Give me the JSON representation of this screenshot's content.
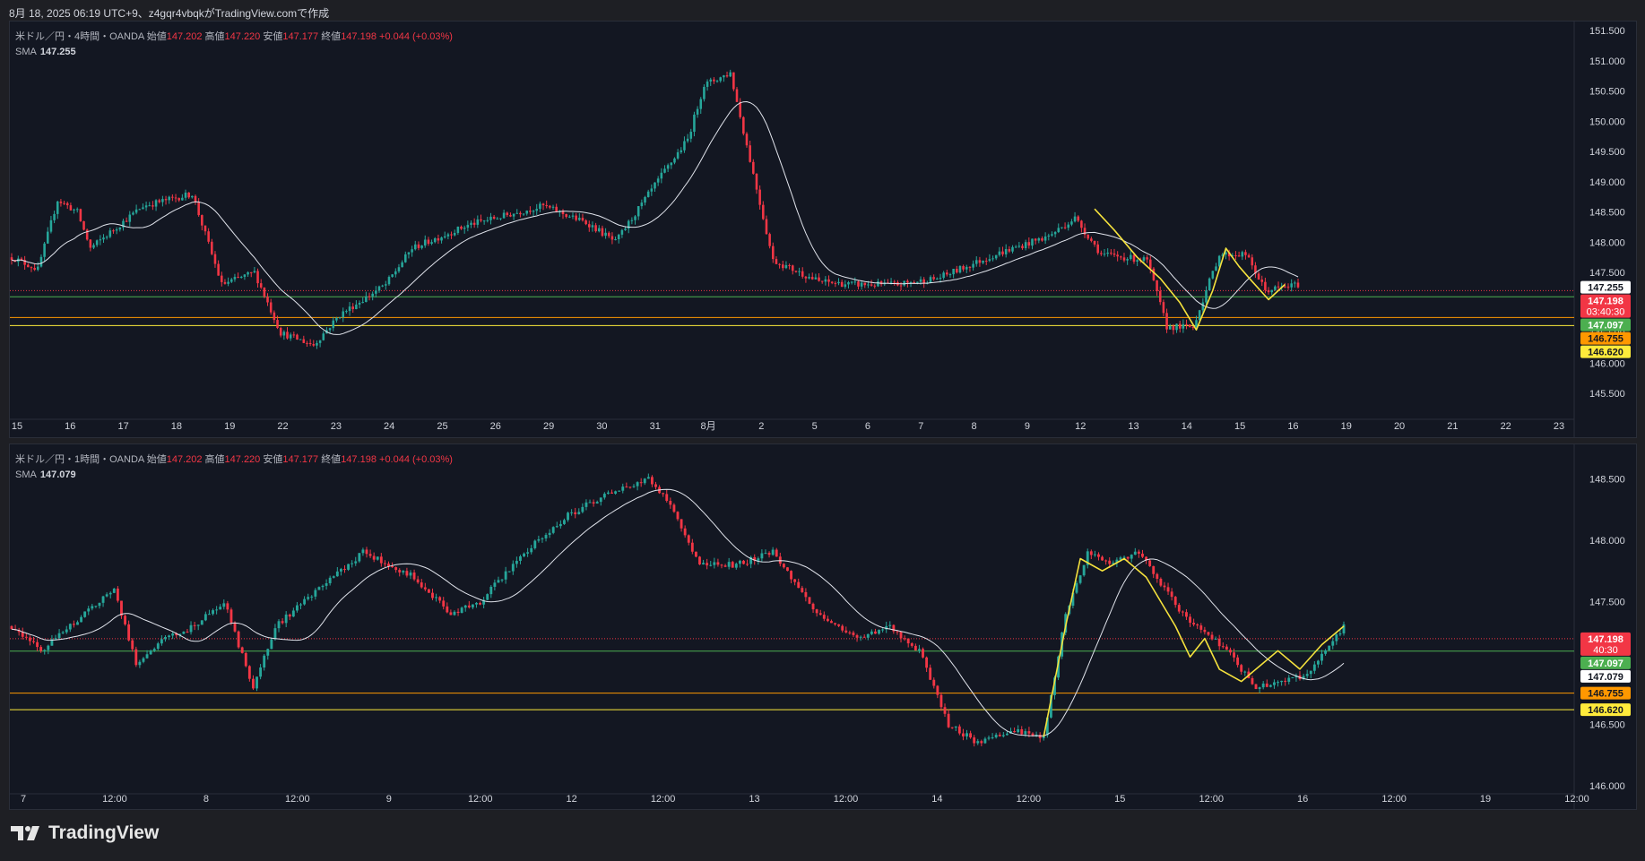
{
  "header": {
    "text": "8月 18, 2025 06:19 UTC+9、z4gqr4vbqkがTradingView.comで作成"
  },
  "colors": {
    "up": "#26a69a",
    "down": "#f23645",
    "sma": "#e0e3eb",
    "yellow_line": "#f5e23d",
    "green_line": "#4caf50",
    "orange_line": "#ff9800",
    "lightyellow_line": "#ffeb3b",
    "axis_text": "#d1d4dc"
  },
  "panes": [
    {
      "id": "pane1",
      "legend": {
        "symbol": "米ドル／円・4時間・OANDA",
        "open_label": "始値",
        "open": "147.202",
        "high_label": "高値",
        "high": "147.220",
        "low_label": "安値",
        "low": "147.177",
        "close_label": "終値",
        "close": "147.198",
        "change": "+0.044 (+0.03%)",
        "sma_label": "SMA",
        "sma_value": "147.255"
      },
      "y_axis": {
        "min": 145.1,
        "max": 151.65,
        "ticks": [
          "145.500",
          "146.000",
          "146.500",
          "147.000",
          "147.500",
          "148.000",
          "148.500",
          "149.000",
          "149.500",
          "150.000",
          "150.500",
          "151.000",
          "151.500"
        ]
      },
      "x_labels": [
        "15",
        "16",
        "17",
        "18",
        "19",
        "22",
        "23",
        "24",
        "25",
        "26",
        "29",
        "30",
        "31",
        "8月",
        "2",
        "5",
        "6",
        "7",
        "8",
        "9",
        "12",
        "13",
        "14",
        "15",
        "16",
        "19",
        "20",
        "21",
        "22",
        "23"
      ],
      "price_tags": [
        {
          "value": 147.255,
          "text": "147.255",
          "bg": "#ffffff",
          "fg": "#131722"
        },
        {
          "value": 147.198,
          "text": "147.198",
          "sub": "03:40:30",
          "bg": "#f23645",
          "fg": "#ffffff"
        },
        {
          "value": 147.097,
          "text": "147.097",
          "bg": "#4caf50",
          "fg": "#ffffff"
        },
        {
          "value": 146.755,
          "text": "146.755",
          "bg": "#ff9800",
          "fg": "#131722"
        },
        {
          "value": 146.62,
          "text": "146.620",
          "bg": "#ffeb3b",
          "fg": "#131722"
        }
      ],
      "hlines": [
        {
          "value": 147.198,
          "color": "#f23645",
          "dashed": true
        },
        {
          "value": 147.097,
          "color": "#4caf50"
        },
        {
          "value": 146.755,
          "color": "#ff9800"
        },
        {
          "value": 146.62,
          "color": "#ffeb3b"
        }
      ],
      "anchors": [
        [
          0,
          147.75
        ],
        [
          8,
          147.55
        ],
        [
          14,
          148.7
        ],
        [
          20,
          148.5
        ],
        [
          24,
          147.9
        ],
        [
          40,
          148.6
        ],
        [
          55,
          148.8
        ],
        [
          64,
          147.3
        ],
        [
          74,
          147.5
        ],
        [
          82,
          146.5
        ],
        [
          92,
          146.3
        ],
        [
          100,
          146.8
        ],
        [
          114,
          147.3
        ],
        [
          122,
          147.9
        ],
        [
          140,
          148.3
        ],
        [
          162,
          148.6
        ],
        [
          176,
          148.3
        ],
        [
          184,
          148.0
        ],
        [
          198,
          149.1
        ],
        [
          206,
          149.7
        ],
        [
          211,
          150.6
        ],
        [
          219,
          150.8
        ],
        [
          224,
          149.6
        ],
        [
          232,
          147.7
        ],
        [
          246,
          147.35
        ],
        [
          256,
          147.3
        ],
        [
          270,
          147.3
        ],
        [
          282,
          147.4
        ],
        [
          300,
          147.8
        ],
        [
          316,
          148.1
        ],
        [
          324,
          148.4
        ],
        [
          332,
          147.8
        ],
        [
          346,
          147.7
        ],
        [
          352,
          146.6
        ],
        [
          360,
          146.6
        ],
        [
          368,
          147.8
        ],
        [
          376,
          147.8
        ],
        [
          382,
          147.2
        ],
        [
          392,
          147.3
        ]
      ],
      "yellow_path": [
        [
          330,
          148.55
        ],
        [
          336,
          148.2
        ],
        [
          343,
          147.75
        ],
        [
          350,
          147.4
        ],
        [
          356,
          147.0
        ],
        [
          361,
          146.55
        ],
        [
          366,
          147.2
        ],
        [
          370,
          147.9
        ],
        [
          374,
          147.6
        ],
        [
          378,
          147.35
        ],
        [
          383,
          147.05
        ],
        [
          388,
          147.3
        ]
      ],
      "sma_period": 20,
      "hidden_volatility": 0.09,
      "time_units": 560
    },
    {
      "id": "pane2",
      "legend": {
        "symbol": "米ドル／円・1時間・OANDA",
        "open_label": "始値",
        "open": "147.202",
        "high_label": "高値",
        "high": "147.220",
        "low_label": "安値",
        "low": "147.177",
        "close_label": "終値",
        "close": "147.198",
        "change": "+0.044 (+0.03%)",
        "sma_label": "SMA",
        "sma_value": "147.079"
      },
      "y_axis": {
        "min": 145.95,
        "max": 148.78,
        "ticks": [
          "146.000",
          "146.500",
          "147.000",
          "147.500",
          "148.000",
          "148.500"
        ]
      },
      "x_labels": [
        "7",
        "12:00",
        "8",
        "12:00",
        "9",
        "12:00",
        "12",
        "12:00",
        "13",
        "12:00",
        "14",
        "12:00",
        "15",
        "12:00",
        "16",
        "12:00",
        "19",
        "12:00"
      ],
      "price_tags": [
        {
          "value": 147.198,
          "text": "147.198",
          "sub": "40:30",
          "bg": "#f23645",
          "fg": "#ffffff"
        },
        {
          "value": 147.097,
          "text": "147.097",
          "bg": "#4caf50",
          "fg": "#ffffff"
        },
        {
          "value": 147.079,
          "text": "147.079",
          "bg": "#ffffff",
          "fg": "#131722"
        },
        {
          "value": 146.755,
          "text": "146.755",
          "bg": "#ff9800",
          "fg": "#131722"
        },
        {
          "value": 146.62,
          "text": "146.620",
          "bg": "#ffeb3b",
          "fg": "#131722"
        }
      ],
      "hlines": [
        {
          "value": 147.198,
          "color": "#f23645",
          "dashed": true
        },
        {
          "value": 147.097,
          "color": "#4caf50"
        },
        {
          "value": 146.755,
          "color": "#ff9800"
        },
        {
          "value": 146.62,
          "color": "#ffeb3b"
        }
      ],
      "anchors": [
        [
          0,
          147.3
        ],
        [
          8,
          147.1
        ],
        [
          20,
          147.4
        ],
        [
          28,
          147.6
        ],
        [
          34,
          147.0
        ],
        [
          42,
          147.2
        ],
        [
          50,
          147.3
        ],
        [
          58,
          147.5
        ],
        [
          66,
          146.8
        ],
        [
          72,
          147.3
        ],
        [
          84,
          147.6
        ],
        [
          96,
          147.9
        ],
        [
          110,
          147.7
        ],
        [
          120,
          147.4
        ],
        [
          128,
          147.5
        ],
        [
          140,
          147.9
        ],
        [
          152,
          148.2
        ],
        [
          164,
          148.4
        ],
        [
          174,
          148.5
        ],
        [
          180,
          148.3
        ],
        [
          188,
          147.8
        ],
        [
          198,
          147.8
        ],
        [
          208,
          147.9
        ],
        [
          220,
          147.4
        ],
        [
          232,
          147.2
        ],
        [
          240,
          147.3
        ],
        [
          248,
          147.1
        ],
        [
          256,
          146.5
        ],
        [
          264,
          146.35
        ],
        [
          274,
          146.45
        ],
        [
          282,
          146.4
        ],
        [
          288,
          147.4
        ],
        [
          294,
          147.9
        ],
        [
          300,
          147.8
        ],
        [
          308,
          147.9
        ],
        [
          320,
          147.4
        ],
        [
          332,
          147.1
        ],
        [
          340,
          146.8
        ],
        [
          354,
          146.9
        ],
        [
          364,
          147.3
        ]
      ],
      "yellow_path": [
        [
          282,
          146.4
        ],
        [
          288,
          147.3
        ],
        [
          292,
          147.85
        ],
        [
          298,
          147.75
        ],
        [
          304,
          147.85
        ],
        [
          310,
          147.7
        ],
        [
          318,
          147.3
        ],
        [
          322,
          147.05
        ],
        [
          326,
          147.2
        ],
        [
          330,
          146.95
        ],
        [
          336,
          146.85
        ],
        [
          342,
          147.0
        ],
        [
          346,
          147.1
        ],
        [
          352,
          146.95
        ],
        [
          358,
          147.15
        ],
        [
          364,
          147.3
        ]
      ],
      "sma_period": 20,
      "hidden_volatility": 0.04,
      "time_units": 410
    }
  ],
  "footer": {
    "brand": "TradingView"
  }
}
